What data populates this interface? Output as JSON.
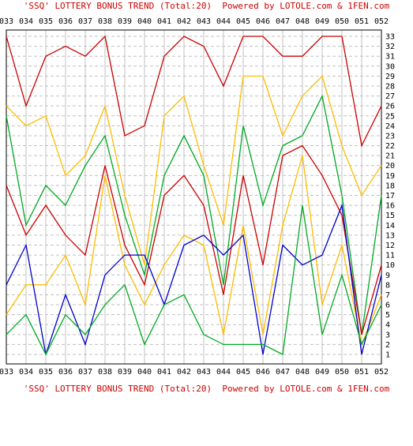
{
  "chart_data": {
    "type": "line",
    "title": "'SSQ' LOTTERY BONUS TREND (Total:20)  Powered by LOTOLE.com & 1FEN.com",
    "footer": "'SSQ' LOTTERY BONUS TREND (Total:20)  Powered by LOTOLE.com & 1FEN.com",
    "xlabel": "",
    "ylabel": "",
    "categories": [
      "033",
      "034",
      "035",
      "036",
      "037",
      "038",
      "039",
      "040",
      "041",
      "042",
      "043",
      "044",
      "045",
      "046",
      "047",
      "048",
      "049",
      "050",
      "051",
      "052"
    ],
    "ylim": [
      1,
      33
    ],
    "y_ticks": [
      1,
      2,
      3,
      4,
      5,
      6,
      7,
      8,
      9,
      10,
      11,
      12,
      13,
      14,
      15,
      16,
      17,
      18,
      19,
      20,
      21,
      22,
      23,
      24,
      25,
      26,
      27,
      28,
      29,
      30,
      31,
      32,
      33
    ],
    "grid": true,
    "colors": {
      "red": "#cc0000",
      "orange": "#ffbb00",
      "green": "#00aa22",
      "blue": "#0000cc",
      "grid": "#c0c0c0",
      "caption": "#cc0000"
    },
    "series": [
      {
        "color": "red",
        "values": [
          33,
          26,
          31,
          32,
          31,
          33,
          23,
          24,
          31,
          33,
          32,
          28,
          33,
          33,
          31,
          31,
          33,
          33,
          22,
          26
        ]
      },
      {
        "color": "orange",
        "values": [
          26,
          24,
          25,
          19,
          21,
          26,
          17,
          10,
          25,
          27,
          20,
          14,
          29,
          29,
          23,
          27,
          29,
          22,
          17,
          20
        ]
      },
      {
        "color": "green",
        "values": [
          25,
          14,
          18,
          16,
          20,
          23,
          15,
          9,
          19,
          23,
          19,
          8,
          24,
          16,
          22,
          23,
          27,
          17,
          3,
          17
        ]
      },
      {
        "color": "red",
        "values": [
          18,
          13,
          16,
          13,
          11,
          20,
          12,
          8,
          17,
          19,
          16,
          7,
          19,
          10,
          21,
          22,
          19,
          15,
          3,
          10
        ]
      },
      {
        "color": "orange",
        "values": [
          5,
          8,
          8,
          11,
          6,
          19,
          10,
          6,
          10,
          13,
          12,
          3,
          14,
          3,
          14,
          21,
          6,
          12,
          2,
          7
        ]
      },
      {
        "color": "blue",
        "values": [
          8,
          12,
          1,
          7,
          2,
          9,
          11,
          11,
          6,
          12,
          13,
          11,
          13,
          1,
          12,
          10,
          11,
          16,
          1,
          9
        ]
      },
      {
        "color": "green",
        "values": [
          3,
          5,
          1,
          5,
          3,
          6,
          8,
          2,
          6,
          7,
          3,
          2,
          2,
          2,
          1,
          16,
          3,
          9,
          2,
          6
        ]
      }
    ]
  }
}
